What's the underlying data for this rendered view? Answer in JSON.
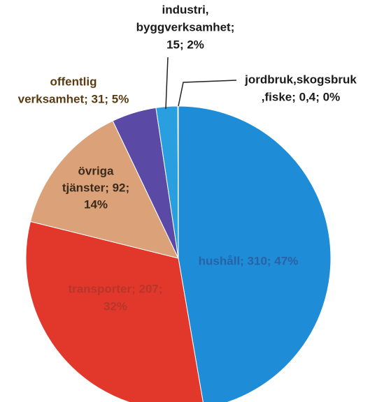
{
  "chart_data": {
    "type": "pie",
    "values": [
      310,
      207,
      92,
      31,
      15,
      0.4
    ],
    "value_labels": [
      [
        "hushåll; 310; 47%"
      ],
      [
        "transporter; 207;",
        "32%"
      ],
      [
        "övriga",
        "tjänster; 92;",
        "14%"
      ],
      [
        "offentlig",
        "verksamhet; 31; 5%"
      ],
      [
        "industri,",
        "byggverksamhet;",
        "15; 2%"
      ],
      [
        "jordbruk,skogsbruk",
        ",fiske; 0,4; 0%"
      ]
    ],
    "colors": [
      "#1e8cd6",
      "#e2382c",
      "#dba27a",
      "#5a4aa6",
      "#2a9fe0",
      "#d6eef8"
    ]
  }
}
